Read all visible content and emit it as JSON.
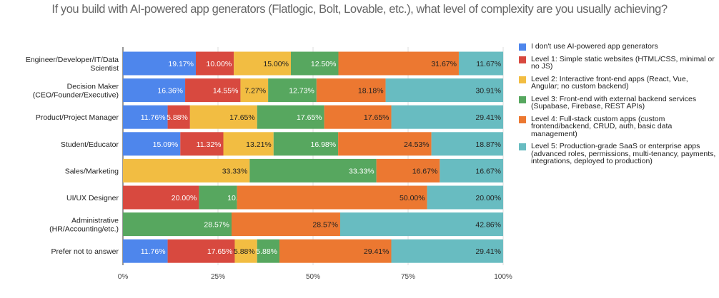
{
  "chart_data": {
    "type": "bar",
    "orientation": "horizontal",
    "stacked": "percent",
    "title": "If you build with AI-powered app generators (Flatlogic, Bolt, Lovable, etc.), what level of complexity are you usually achieving?",
    "categories": [
      [
        "Engineer/Developer/IT/Data",
        "Scientist"
      ],
      [
        "Decision Maker",
        "(CEO/Founder/Executive)"
      ],
      [
        "Product/Project Manager"
      ],
      [
        "Student/Educator"
      ],
      [
        "Sales/Marketing"
      ],
      [
        "UI/UX Designer"
      ],
      [
        "Administrative",
        "(HR/Accounting/etc.)"
      ],
      [
        "Prefer not to answer"
      ]
    ],
    "series": [
      {
        "name": "I don't use AI-powered app generators",
        "color": "#4e86ec",
        "values": [
          19.17,
          16.36,
          11.76,
          15.09,
          0.0,
          0.0,
          0.0,
          11.76
        ]
      },
      {
        "name": "Level 1: Simple static websites (HTML/CSS, minimal or no JS)",
        "color": "#d8493f",
        "values": [
          10.0,
          14.55,
          5.88,
          11.32,
          0.0,
          20.0,
          0.0,
          17.65
        ]
      },
      {
        "name": "Level 2: Interactive front-end apps (React, Vue, Angular; no custom backend)",
        "color": "#f2bd42",
        "values": [
          15.0,
          7.27,
          17.65,
          13.21,
          33.33,
          0.0,
          0.0,
          5.88
        ]
      },
      {
        "name": "Level 3: Front-end with external backend services (Supabase, Firebase, REST APIs)",
        "color": "#57a75f",
        "values": [
          12.5,
          12.73,
          17.65,
          16.98,
          33.33,
          10.0,
          28.57,
          5.88
        ]
      },
      {
        "name": "Level 4: Full-stack custom apps (custom frontend/backend, CRUD, auth, basic data management)",
        "color": "#ec7831",
        "values": [
          31.67,
          18.18,
          17.65,
          24.53,
          16.67,
          50.0,
          28.57,
          29.41
        ]
      },
      {
        "name": "Level 5: Production-grade SaaS or enterprise apps (advanced roles, permissions, multi-tenancy, payments, integrations, deployed to production)",
        "color": "#68bcc1",
        "values": [
          11.67,
          30.91,
          29.41,
          18.87,
          16.67,
          20.0,
          42.86,
          29.41
        ]
      }
    ],
    "xlim": [
      0,
      100
    ],
    "xticks": [
      "0%",
      "25%",
      "50%",
      "75%",
      "100%"
    ],
    "xlabel": "",
    "ylabel": "",
    "grid": true,
    "legend_position": "right",
    "data_labels": true
  }
}
